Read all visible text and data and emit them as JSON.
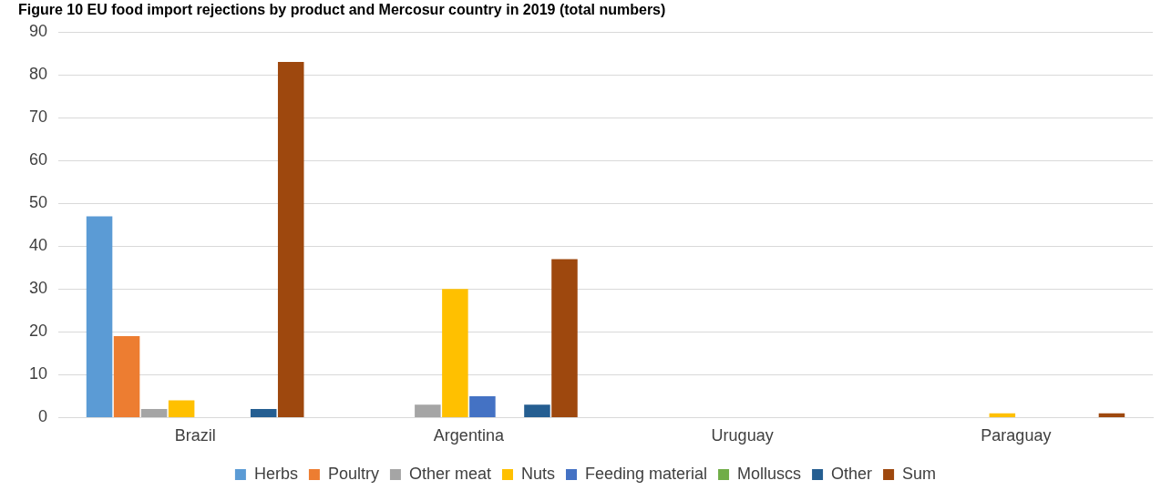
{
  "chart_data": {
    "type": "bar",
    "title": "Figure 10 EU food import rejections by product and Mercosur country in 2019 (total numbers)",
    "categories": [
      "Brazil",
      "Argentina",
      "Uruguay",
      "Paraguay"
    ],
    "series": [
      {
        "name": "Herbs",
        "color": "#5b9bd5",
        "values": [
          47,
          0,
          0,
          0
        ]
      },
      {
        "name": "Poultry",
        "color": "#ed7d31",
        "values": [
          19,
          0,
          0,
          0
        ]
      },
      {
        "name": "Other meat",
        "color": "#a5a5a5",
        "values": [
          2,
          3,
          0,
          0
        ]
      },
      {
        "name": "Nuts",
        "color": "#ffc000",
        "values": [
          4,
          30,
          0,
          1
        ]
      },
      {
        "name": "Feeding material",
        "color": "#4472c4",
        "values": [
          0,
          5,
          0,
          0
        ]
      },
      {
        "name": "Molluscs",
        "color": "#70ad47",
        "values": [
          0,
          0,
          0,
          0
        ]
      },
      {
        "name": "Other",
        "color": "#255e91",
        "values": [
          2,
          3,
          0,
          0
        ]
      },
      {
        "name": "Sum",
        "color": "#9e480e",
        "values": [
          83,
          37,
          0,
          1
        ]
      }
    ],
    "ylim": [
      0,
      90
    ],
    "yticks": [
      0,
      10,
      20,
      30,
      40,
      50,
      60,
      70,
      80,
      90
    ],
    "grid": "y",
    "legend": "bottom"
  }
}
